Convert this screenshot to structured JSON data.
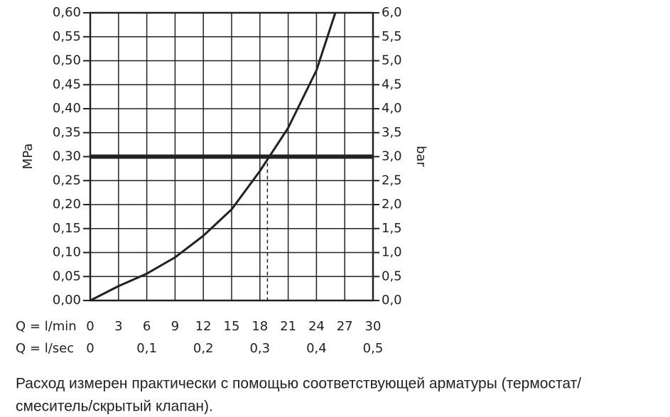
{
  "chart_data": {
    "type": "line",
    "y_label": "MPa",
    "y2_label": "bar",
    "x_label": "Q = l/min",
    "x2_label": "Q = l/sec",
    "xlim": [
      0,
      30
    ],
    "xticks": [
      0,
      3,
      6,
      9,
      12,
      15,
      18,
      21,
      24,
      27,
      30
    ],
    "x2lim": [
      0,
      0.5
    ],
    "x2ticks": [
      0,
      {
        "value": 0.1,
        "label": "0,1"
      },
      {
        "value": 0.2,
        "label": "0,2"
      },
      {
        "value": 0.3,
        "label": "0,3"
      },
      {
        "value": 0.4,
        "label": "0,4"
      },
      {
        "value": 0.5,
        "label": "0,5"
      }
    ],
    "ylim": [
      0,
      0.6
    ],
    "yticks": [
      {
        "value": 0,
        "label": "0,00"
      },
      {
        "value": 0.05,
        "label": "0,05"
      },
      {
        "value": 0.1,
        "label": "0,10"
      },
      {
        "value": 0.15,
        "label": "0,15"
      },
      {
        "value": 0.2,
        "label": "0,20"
      },
      {
        "value": 0.25,
        "label": "0,25"
      },
      {
        "value": 0.3,
        "label": "0,30"
      },
      {
        "value": 0.35,
        "label": "0,35"
      },
      {
        "value": 0.4,
        "label": "0,40"
      },
      {
        "value": 0.45,
        "label": "0,45"
      },
      {
        "value": 0.5,
        "label": "0,50"
      },
      {
        "value": 0.55,
        "label": "0,55"
      },
      {
        "value": 0.6,
        "label": "0,60"
      }
    ],
    "y2lim": [
      0,
      6
    ],
    "y2ticks": [
      {
        "value": 0,
        "label": "0,0"
      },
      {
        "value": 0.5,
        "label": "0,5"
      },
      {
        "value": 1,
        "label": "1,0"
      },
      {
        "value": 1.5,
        "label": "1,5"
      },
      {
        "value": 2,
        "label": "2,0"
      },
      {
        "value": 2.5,
        "label": "2,5"
      },
      {
        "value": 3,
        "label": "3,0"
      },
      {
        "value": 3.5,
        "label": "3,5"
      },
      {
        "value": 4,
        "label": "4,0"
      },
      {
        "value": 4.5,
        "label": "4,5"
      },
      {
        "value": 5,
        "label": "5,0"
      },
      {
        "value": 5.5,
        "label": "5,5"
      },
      {
        "value": 6,
        "label": "6,0"
      }
    ],
    "grid": true,
    "series": [
      {
        "color": "#222222",
        "x": [
          0,
          3,
          6,
          9,
          12,
          15,
          18,
          21,
          24,
          26
        ],
        "values": [
          0,
          0.03,
          0.056,
          0.09,
          0.135,
          0.19,
          0.27,
          0.36,
          0.48,
          0.6
        ]
      }
    ],
    "reference_y": 0.3,
    "reference_x": 18.8,
    "caption": [
      "Расход измерен практически с помощью соответствующей арматуры (термостат/",
      "смеситель/скрытый клапан)."
    ]
  }
}
